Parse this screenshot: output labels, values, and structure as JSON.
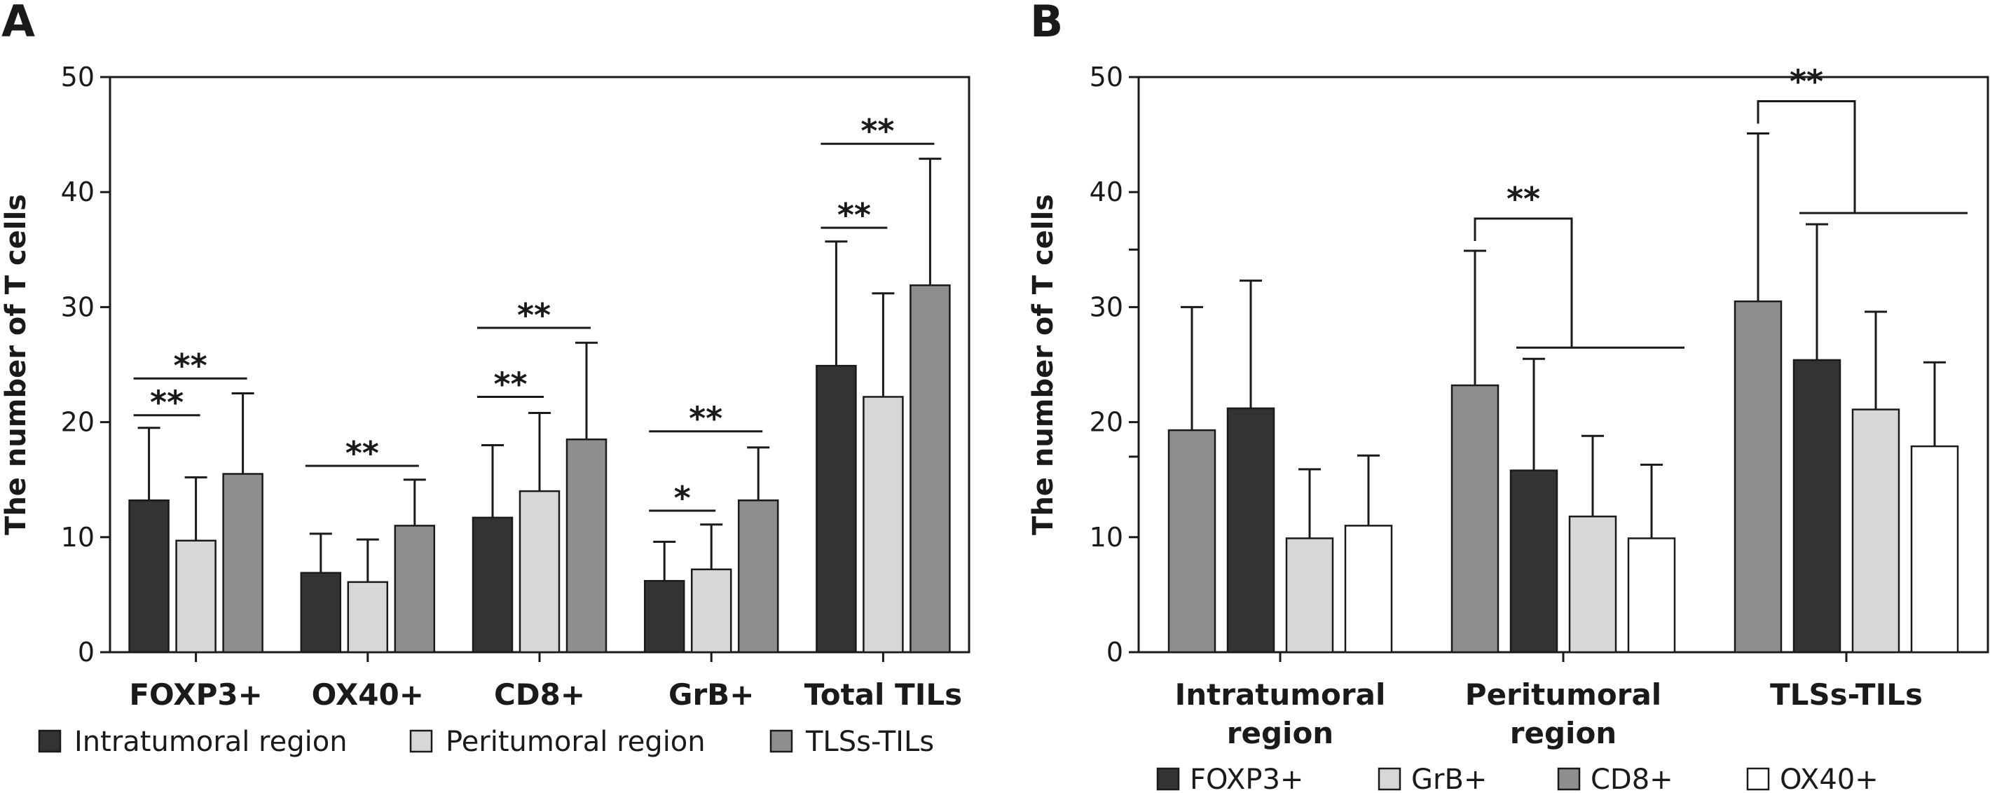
{
  "chart_data": [
    {
      "panel": "A",
      "type": "bar",
      "ylabel": "The number of T cells",
      "ylim": [
        0,
        50
      ],
      "yticks": [
        "0",
        "10",
        "20",
        "30",
        "40",
        "50"
      ],
      "categories": [
        "FOXP3+",
        "OX40+",
        "CD8+",
        "GrB+",
        "Total TILs"
      ],
      "series": [
        {
          "name": "Intratumoral region",
          "color": "#333333",
          "values": [
            13.2,
            6.9,
            11.7,
            6.2,
            24.9
          ],
          "errors": [
            6.3,
            3.4,
            6.3,
            3.4,
            10.8
          ]
        },
        {
          "name": "Peritumoral region",
          "color": "#d7d7d7",
          "values": [
            9.7,
            6.1,
            14.0,
            7.2,
            22.2
          ],
          "errors": [
            5.5,
            3.7,
            6.8,
            3.9,
            9.0
          ]
        },
        {
          "name": "TLSs-TILs",
          "color": "#8e8e8e",
          "values": [
            15.5,
            11.0,
            18.5,
            13.2,
            31.9
          ],
          "errors": [
            7.0,
            4.0,
            8.4,
            4.6,
            11.0
          ]
        }
      ],
      "annotations": [
        {
          "category": 0,
          "from": 0,
          "to": 1,
          "y": 20.6,
          "label": "**"
        },
        {
          "category": 0,
          "from": 0,
          "to": 2,
          "y": 23.8,
          "label": "**"
        },
        {
          "category": 1,
          "from": 0,
          "to": 2,
          "y": 16.2,
          "label": "**"
        },
        {
          "category": 2,
          "from": 0,
          "to": 1,
          "y": 22.2,
          "label": "**"
        },
        {
          "category": 2,
          "from": 0,
          "to": 2,
          "y": 28.2,
          "label": "**"
        },
        {
          "category": 3,
          "from": 0,
          "to": 1,
          "y": 12.3,
          "label": "*"
        },
        {
          "category": 3,
          "from": 0,
          "to": 2,
          "y": 19.2,
          "label": "**"
        },
        {
          "category": 4,
          "from": 0,
          "to": 1,
          "y": 36.9,
          "label": "**"
        },
        {
          "category": 4,
          "from": 0,
          "to": 2,
          "y": 44.2,
          "label": "**"
        }
      ]
    },
    {
      "panel": "B",
      "type": "bar",
      "ylabel": "The number of T cells",
      "ylim": [
        0,
        50
      ],
      "yticks": [
        "0",
        "10",
        "20",
        "30",
        "40",
        "50"
      ],
      "categories": [
        "Intratumoral\nregion",
        "Peritumoral\nregion",
        "TLSs-TILs"
      ],
      "series_order": [
        "CD8+",
        "FOXP3+",
        "GrB+",
        "OX40+"
      ],
      "series": [
        {
          "name": "CD8+",
          "color": "#8e8e8e",
          "values": [
            19.3,
            23.2,
            30.5
          ],
          "errors": [
            10.7,
            11.7,
            14.6
          ]
        },
        {
          "name": "FOXP3+",
          "color": "#333333",
          "values": [
            21.2,
            15.8,
            25.4
          ],
          "errors": [
            11.1,
            9.7,
            11.8
          ]
        },
        {
          "name": "GrB+",
          "color": "#d7d7d7",
          "values": [
            9.9,
            11.8,
            21.1
          ],
          "errors": [
            6.0,
            7.0,
            8.5
          ]
        },
        {
          "name": "OX40+",
          "color": "#ffffff",
          "values": [
            11.0,
            9.9,
            17.9
          ],
          "errors": [
            6.1,
            6.4,
            7.3
          ]
        }
      ],
      "legend_order": [
        "FOXP3+",
        "GrB+",
        "CD8+",
        "OX40+"
      ],
      "annotations": [
        {
          "category": 1,
          "label": "**"
        },
        {
          "category": 2,
          "label": "**"
        }
      ]
    }
  ]
}
